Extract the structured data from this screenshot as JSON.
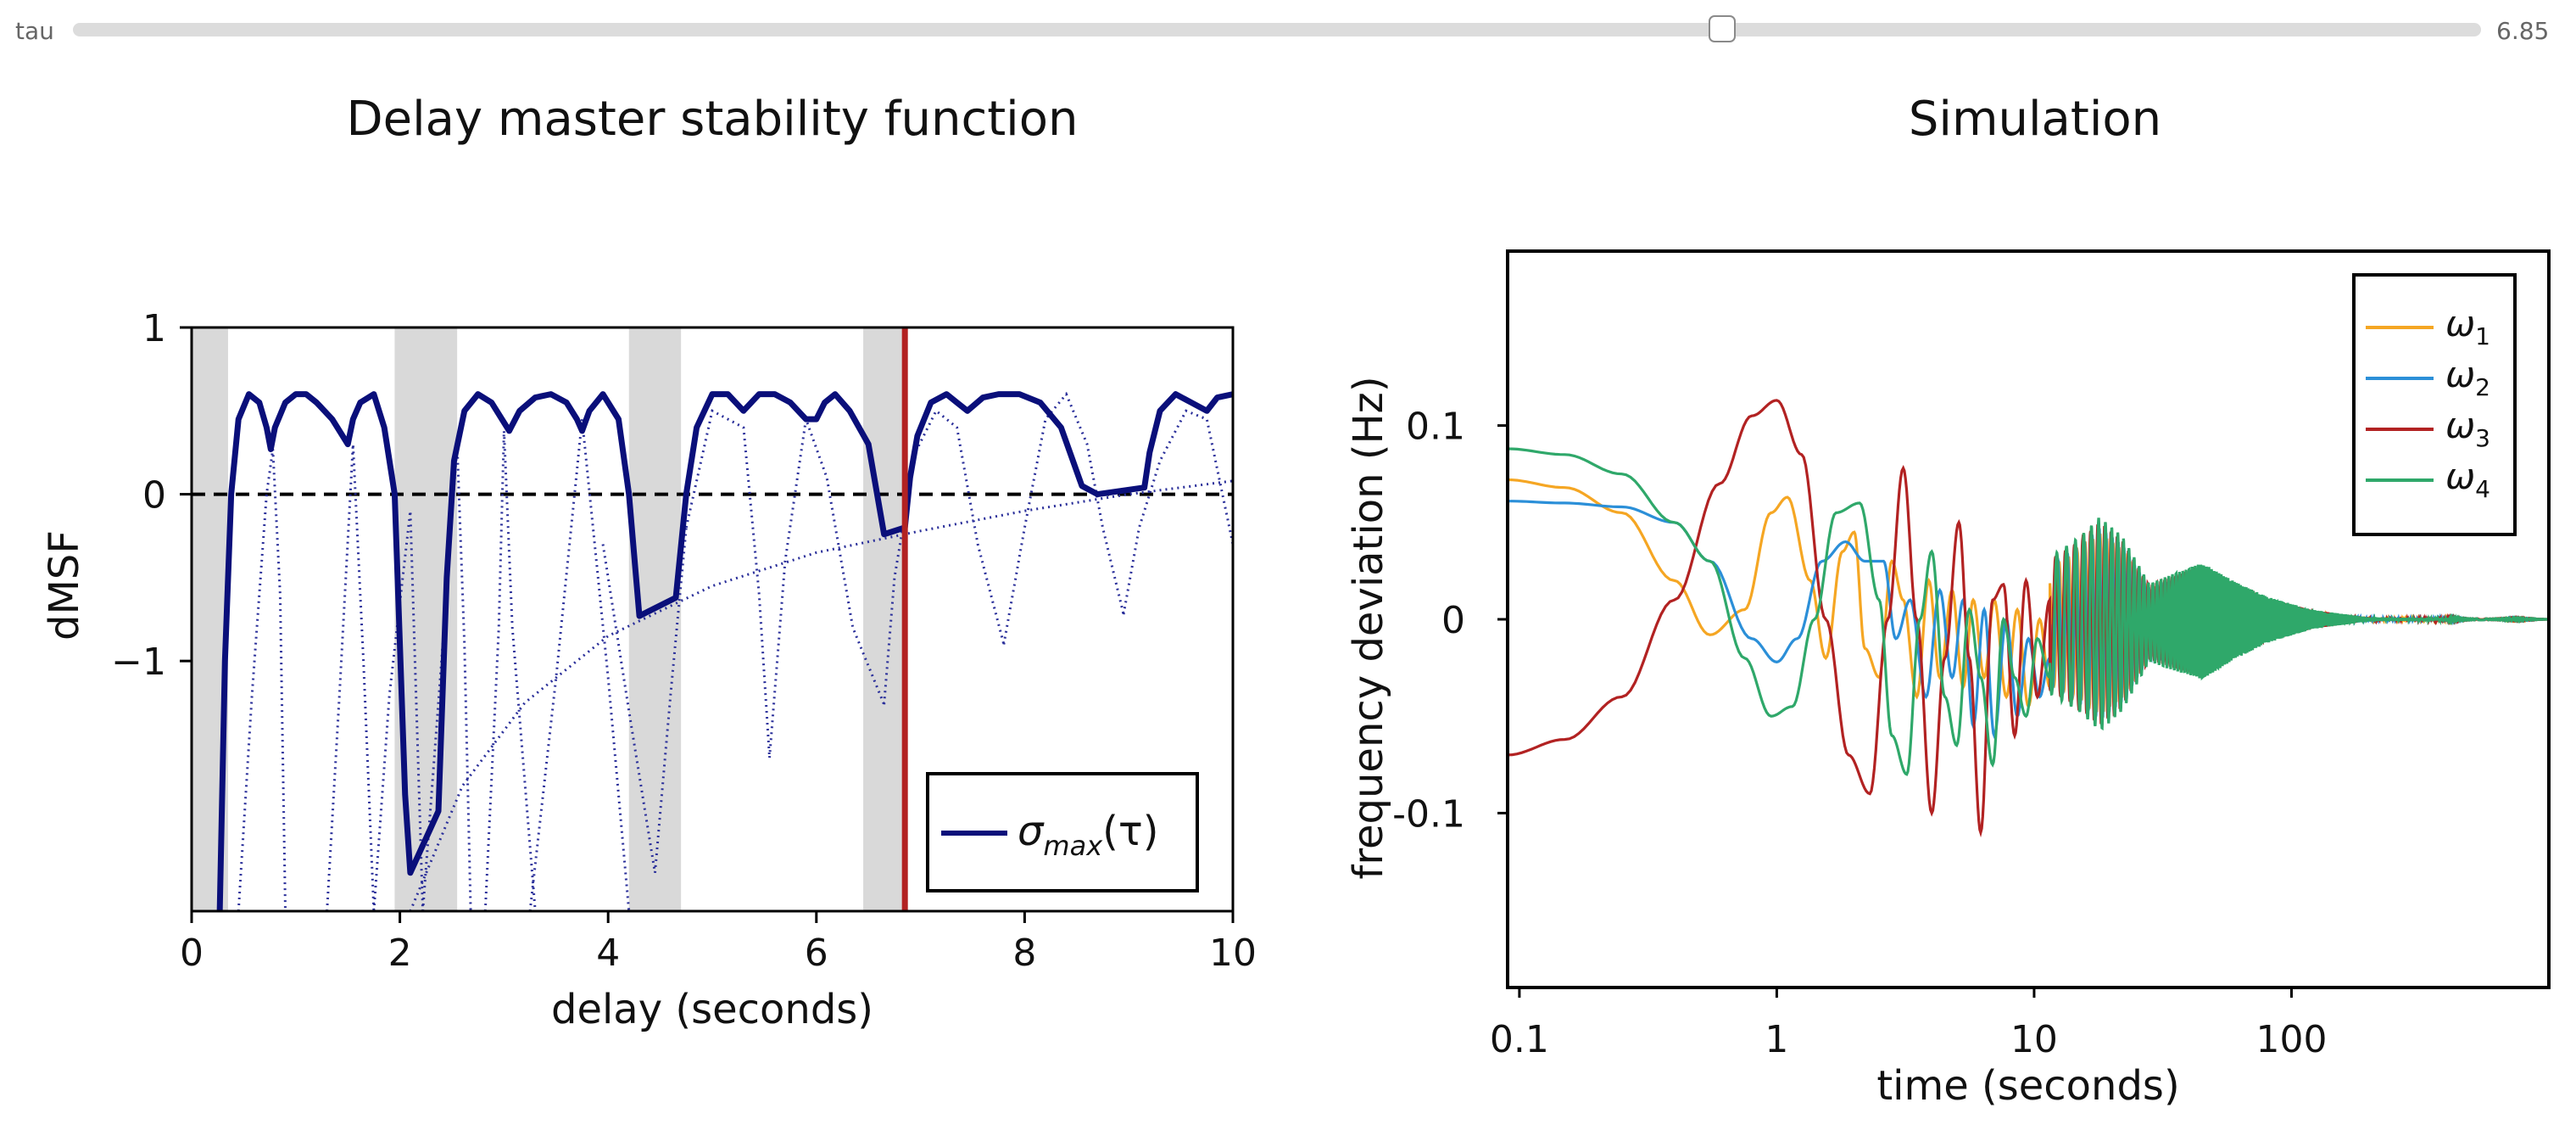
{
  "slider": {
    "label": "tau",
    "value": 6.85,
    "value_text": "6.85",
    "min": 0,
    "max": 10
  },
  "chart_data": [
    {
      "type": "line",
      "title": "Delay master stability function",
      "xlabel": "delay (seconds)",
      "ylabel": "dMSF",
      "xlim": [
        0,
        10
      ],
      "ylim": [
        -2.5,
        1
      ],
      "xticks": [
        0,
        2,
        4,
        6,
        8,
        10
      ],
      "xtick_labels": [
        "0",
        "2",
        "4",
        "6",
        "8",
        "10"
      ],
      "yticks": [
        1,
        0,
        -1
      ],
      "ytick_labels": [
        "1",
        "0",
        "−1"
      ],
      "shaded_intervals": [
        [
          0,
          0.35
        ],
        [
          1.95,
          2.55
        ],
        [
          4.2,
          4.7
        ],
        [
          6.45,
          6.85
        ]
      ],
      "reference_line_y": 0,
      "current_tau": 6.85,
      "legend": {
        "position": "bottom-right",
        "entry": "σmax(τ)",
        "entry_main": "σ",
        "entry_sub": "max",
        "entry_arg": "(τ)"
      },
      "series": [
        {
          "name": "σmax(τ)",
          "style": "solid",
          "color": "#0a0f7a",
          "x": [
            0.27,
            0.32,
            0.38,
            0.45,
            0.55,
            0.65,
            0.72,
            0.76,
            0.8,
            0.9,
            1.0,
            1.1,
            1.2,
            1.35,
            1.5,
            1.55,
            1.62,
            1.75,
            1.85,
            1.95,
            2.05,
            2.1,
            2.37,
            2.45,
            2.52,
            2.62,
            2.75,
            2.88,
            2.98,
            3.05,
            3.15,
            3.3,
            3.45,
            3.6,
            3.7,
            3.75,
            3.82,
            3.95,
            4.1,
            4.2,
            4.3,
            4.65,
            4.75,
            4.85,
            5.0,
            5.15,
            5.3,
            5.45,
            5.6,
            5.75,
            5.9,
            6.0,
            6.08,
            6.18,
            6.32,
            6.5,
            6.65,
            6.85,
            6.9,
            6.97,
            7.1,
            7.25,
            7.35,
            7.45,
            7.6,
            7.75,
            7.95,
            8.15,
            8.35,
            8.55,
            8.7,
            9.15,
            9.2,
            9.3,
            9.45,
            9.6,
            9.75,
            9.85,
            10.0
          ],
          "y": [
            -2.5,
            -1.0,
            0.0,
            0.45,
            0.6,
            0.55,
            0.4,
            0.27,
            0.4,
            0.55,
            0.6,
            0.6,
            0.55,
            0.45,
            0.3,
            0.45,
            0.55,
            0.6,
            0.4,
            0.0,
            -1.8,
            -2.27,
            -1.9,
            -0.5,
            0.2,
            0.5,
            0.6,
            0.55,
            0.45,
            0.38,
            0.5,
            0.58,
            0.6,
            0.55,
            0.45,
            0.38,
            0.5,
            0.6,
            0.45,
            0.0,
            -0.73,
            -0.62,
            0.0,
            0.4,
            0.6,
            0.6,
            0.5,
            0.6,
            0.6,
            0.55,
            0.45,
            0.45,
            0.55,
            0.6,
            0.5,
            0.3,
            -0.24,
            -0.2,
            0.1,
            0.35,
            0.55,
            0.6,
            0.55,
            0.5,
            0.58,
            0.6,
            0.6,
            0.55,
            0.4,
            0.05,
            0.0,
            0.04,
            0.25,
            0.5,
            0.6,
            0.55,
            0.5,
            0.58,
            0.6
          ]
        },
        {
          "name": "",
          "style": "dotted",
          "color": "#2a2f9a",
          "segments": [
            {
              "x": [
                0.45,
                0.58,
                0.72,
                0.78,
                0.85,
                0.9
              ],
              "y": [
                -2.5,
                -1.2,
                0.0,
                0.27,
                -0.6,
                -2.5
              ]
            },
            {
              "x": [
                1.3,
                1.42,
                1.55,
                1.65,
                1.75
              ],
              "y": [
                -2.5,
                -1.2,
                0.3,
                -1.0,
                -2.5
              ]
            },
            {
              "x": [
                1.75,
                1.9,
                2.1,
                2.22
              ],
              "y": [
                -2.5,
                -1.2,
                -0.1,
                -2.5
              ]
            },
            {
              "x": [
                2.22,
                2.4,
                2.55,
                2.62,
                2.68
              ],
              "y": [
                -2.5,
                -1.0,
                0.3,
                -0.9,
                -2.5
              ]
            },
            {
              "x": [
                2.82,
                2.95,
                3.0,
                3.08,
                3.3
              ],
              "y": [
                -2.5,
                -0.8,
                0.38,
                -0.8,
                -2.5
              ]
            },
            {
              "x": [
                3.25,
                3.5,
                3.75,
                4.0,
                4.2
              ],
              "y": [
                -2.5,
                -1.1,
                0.45,
                -1.1,
                -2.5
              ]
            },
            {
              "x": [
                3.95,
                4.2,
                4.45,
                4.6,
                4.75
              ],
              "y": [
                -0.3,
                -1.3,
                -2.27,
                -1.2,
                -0.2
              ]
            },
            {
              "x": [
                4.75,
                5.0,
                5.3,
                5.45,
                5.55
              ],
              "y": [
                -0.2,
                0.5,
                0.4,
                -0.6,
                -1.58
              ]
            },
            {
              "x": [
                5.55,
                5.7,
                5.9,
                6.1,
                6.35,
                6.65
              ],
              "y": [
                -1.58,
                -0.4,
                0.45,
                0.1,
                -0.8,
                -1.26
              ]
            },
            {
              "x": [
                6.65,
                6.75,
                6.95,
                7.15,
                7.35,
                7.55,
                7.8
              ],
              "y": [
                -1.26,
                -0.5,
                0.25,
                0.5,
                0.4,
                -0.3,
                -0.9
              ]
            },
            {
              "x": [
                7.8,
                8.0,
                8.2,
                8.4,
                8.6,
                8.75,
                8.95
              ],
              "y": [
                -0.9,
                -0.2,
                0.45,
                0.6,
                0.3,
                -0.2,
                -0.72
              ]
            },
            {
              "x": [
                8.95,
                9.1,
                9.3,
                9.55,
                9.75,
                10.0
              ],
              "y": [
                -0.72,
                -0.2,
                0.2,
                0.5,
                0.45,
                -0.3
              ]
            },
            {
              "x": [
                2.1,
                2.6,
                3.2,
                4.0,
                5.0,
                6.0,
                7.0,
                8.0,
                9.0,
                10.0
              ],
              "y": [
                -2.5,
                -1.75,
                -1.25,
                -0.85,
                -0.55,
                -0.35,
                -0.22,
                -0.1,
                0.0,
                0.08
              ]
            }
          ]
        }
      ]
    },
    {
      "type": "line",
      "title": "Simulation",
      "xlabel": "time (seconds)",
      "ylabel": "frequency deviation (Hz)",
      "xscale": "log",
      "xlim": [
        0.09,
        1000
      ],
      "ylim": [
        -0.19,
        0.19
      ],
      "xticks": [
        0.1,
        1,
        10,
        100
      ],
      "xtick_labels": [
        "0.1",
        "1",
        "10",
        "100"
      ],
      "yticks": [
        0.1,
        0,
        -0.1
      ],
      "ytick_labels": [
        "0.1",
        "0",
        "-0.1"
      ],
      "legend": {
        "position": "top-right"
      },
      "series": [
        {
          "name": "ω1",
          "label_main": "ω",
          "label_sub": "1",
          "color": "#f5a623",
          "x": [
            0.09,
            0.15,
            0.25,
            0.4,
            0.55,
            0.75,
            0.95,
            1.1,
            1.35,
            1.55,
            1.8,
            2.0,
            2.2,
            2.5,
            2.8,
            3.1,
            3.5,
            3.9,
            4.3,
            4.8,
            5.3,
            5.8,
            6.4,
            7.0,
            7.8,
            8.6,
            9.5,
            10.5,
            11.5
          ],
          "y": [
            0.072,
            0.068,
            0.055,
            0.02,
            -0.008,
            0.005,
            0.055,
            0.063,
            0.02,
            -0.02,
            0.035,
            0.045,
            -0.015,
            -0.03,
            0.03,
            0.01,
            -0.04,
            0.02,
            -0.03,
            0.015,
            -0.035,
            0.01,
            -0.03,
            0.01,
            -0.04,
            0.005,
            -0.045,
            0.0,
            -0.035
          ]
        },
        {
          "name": "ω2",
          "label_main": "ω",
          "label_sub": "2",
          "color": "#2b8fd8",
          "x": [
            0.09,
            0.15,
            0.25,
            0.4,
            0.55,
            0.8,
            1.0,
            1.2,
            1.5,
            1.85,
            2.2,
            2.6,
            2.9,
            3.3,
            3.8,
            4.3,
            4.8,
            5.3,
            5.8,
            6.4,
            7.0,
            7.8,
            8.6,
            9.5,
            10.5,
            11.5
          ],
          "y": [
            0.061,
            0.06,
            0.058,
            0.05,
            0.03,
            -0.01,
            -0.022,
            -0.01,
            0.03,
            0.04,
            0.03,
            0.03,
            -0.01,
            0.01,
            -0.04,
            0.015,
            -0.03,
            0.01,
            -0.055,
            0.005,
            -0.06,
            0.0,
            -0.05,
            -0.01,
            -0.04,
            -0.02
          ]
        },
        {
          "name": "ω3",
          "label_main": "ω",
          "label_sub": "3",
          "color": "#b22222",
          "x": [
            0.09,
            0.15,
            0.25,
            0.4,
            0.6,
            0.8,
            1.0,
            1.25,
            1.55,
            1.9,
            2.3,
            2.7,
            3.1,
            3.5,
            4.0,
            4.5,
            5.1,
            5.6,
            6.2,
            6.9,
            7.6,
            8.4,
            9.3,
            10.3,
            11.5
          ],
          "y": [
            -0.07,
            -0.062,
            -0.04,
            0.01,
            0.07,
            0.105,
            0.113,
            0.085,
            0.0,
            -0.07,
            -0.09,
            0.0,
            0.078,
            0.0,
            -0.1,
            -0.02,
            0.05,
            -0.02,
            -0.11,
            0.01,
            0.018,
            -0.06,
            0.02,
            -0.04,
            0.01
          ]
        },
        {
          "name": "ω4",
          "label_main": "ω",
          "label_sub": "4",
          "color": "#2fa86a",
          "x": [
            0.09,
            0.15,
            0.25,
            0.4,
            0.55,
            0.75,
            0.95,
            1.15,
            1.4,
            1.7,
            2.1,
            2.5,
            2.8,
            3.2,
            3.6,
            4.0,
            4.5,
            5.0,
            5.6,
            6.2,
            6.9,
            7.6,
            8.4,
            9.3,
            10.3,
            11.5
          ],
          "y": [
            0.088,
            0.085,
            0.075,
            0.05,
            0.03,
            -0.02,
            -0.05,
            -0.045,
            0.0,
            0.055,
            0.06,
            0.01,
            -0.06,
            -0.08,
            0.0,
            0.035,
            -0.04,
            -0.065,
            0.005,
            -0.03,
            -0.075,
            0.0,
            -0.03,
            -0.05,
            -0.01,
            -0.03
          ]
        }
      ],
      "envelope_oscillation": {
        "t_start": 11.5,
        "t_end": 1000,
        "envelope": [
          [
            11.5,
            0.035
          ],
          [
            15,
            0.045
          ],
          [
            18,
            0.055
          ],
          [
            22,
            0.045
          ],
          [
            28,
            0.02
          ],
          [
            35,
            0.025
          ],
          [
            45,
            0.03
          ],
          [
            60,
            0.02
          ],
          [
            80,
            0.012
          ],
          [
            120,
            0.005
          ],
          [
            200,
            0.001
          ],
          [
            1000,
            0.0
          ]
        ]
      }
    }
  ]
}
